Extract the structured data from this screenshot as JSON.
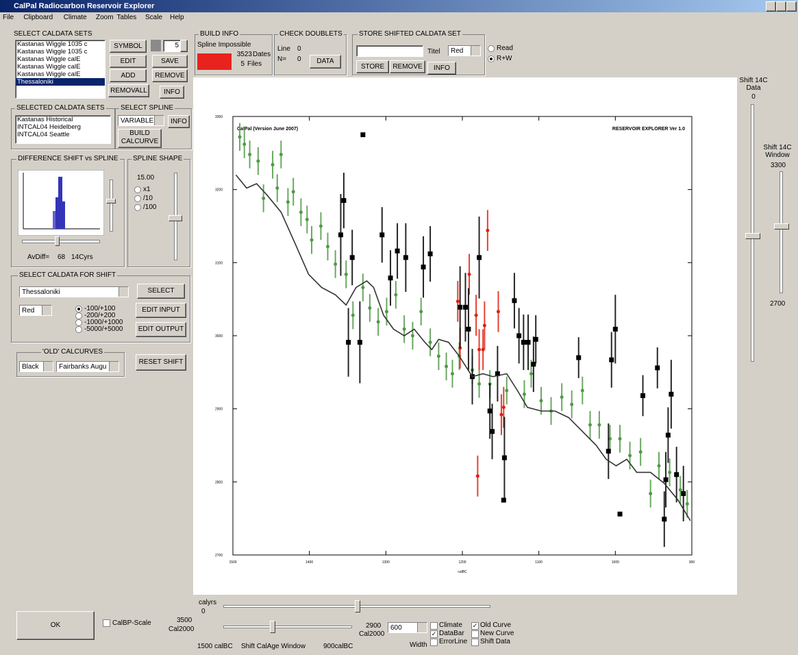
{
  "window": {
    "title": "CalPal Radiocarbon Reservoir Explorer"
  },
  "menu": [
    "File",
    "Clipboard",
    "Climate",
    "Zoom",
    "Tables",
    "Scale",
    "Help"
  ],
  "caldata_sets": {
    "title": "SELECT CALDATA SETS",
    "items": [
      "Kastanas Wiggle 1035 c",
      "Kastanas Wiggle 1035 c",
      "Kastanas Wiggle   calE",
      "Kastanas Wiggle   calE",
      "Kastanas Wiggle   calE",
      "Thessaloniki"
    ],
    "selected": 5,
    "symbol": "SYMBOL",
    "edit": "EDIT",
    "add": "ADD",
    "removall": "REMOVALL",
    "count": 5,
    "save": "SAVE",
    "remove": "REMOVE",
    "info": "INFO"
  },
  "build_info": {
    "title": "BUILD INFO",
    "status": "Spline Impossible",
    "dates": 3523,
    "dates_label": "Dates",
    "files": 5,
    "files_label": "Files"
  },
  "check_doublets": {
    "title": "CHECK DOUBLETS",
    "line_label": "Line",
    "line": 0,
    "n_label": "N=",
    "n": 0,
    "data": "DATA"
  },
  "store": {
    "title": "STORE SHIFTED CALDATA SET",
    "titel": "Titel",
    "color": "Red",
    "modes": [
      "Read",
      "R+W"
    ],
    "mode_selected": 1,
    "store": "STORE",
    "remove": "REMOVE",
    "info": "INFO"
  },
  "selected_sets": {
    "title": "SELECTED CALDATA SETS",
    "items": [
      "Kastanas Historical",
      "INTCAL04 Heidelberg",
      "INTCAL04 Seattle"
    ]
  },
  "select_spline": {
    "title": "SELECT SPLINE",
    "mode": "VARIABLE",
    "info": "INFO",
    "build": "BUILD CALCURVE"
  },
  "difference": {
    "title": "DIFFERENCE SHIFT vs SPLINE",
    "avdiff_label": "AvDiff=",
    "avdiff": 68,
    "unit": "14Cyrs"
  },
  "spline_shape": {
    "title": "SPLINE SHAPE",
    "value": "15.00",
    "options": [
      "x1",
      "/10",
      "/100"
    ],
    "selected": -1
  },
  "shift_select": {
    "title": "SELECT CALDATA FOR SHIFT",
    "set": "Thessaloniki",
    "color": "Red",
    "ranges": [
      "-100/+100",
      "-200/+200",
      "-1000/+1000",
      "-5000/+5000"
    ],
    "selected": 0,
    "select": "SELECT",
    "edit_input": "EDIT INPUT",
    "edit_output": "EDIT OUTPUT"
  },
  "old_calcurves": {
    "title": "'OLD' CALCURVES",
    "color": "Black",
    "curve": "Fairbanks Augu",
    "reset": "RESET SHIFT"
  },
  "right": {
    "data_label": "Shift 14C Data",
    "data_value": 0,
    "window_label": "Shift 14C Window",
    "window_max": 3300,
    "window_min": 2700
  },
  "bottom": {
    "ok": "OK",
    "calbp": "CalBP-Scale",
    "calbp_checked": false,
    "calyrs": "calyrs",
    "calyrs_value": 0,
    "left_value": 3500,
    "left_unit": "Cal2000",
    "right_value": 2900,
    "right_unit": "Cal2000",
    "window_start": "1500 calBC",
    "window_label": "Shift CalAge Window",
    "window_end": "900calBC",
    "width": 600,
    "width_label": "Width",
    "checks": [
      {
        "label": "Climate",
        "checked": false
      },
      {
        "label": "DataBar",
        "checked": true
      },
      {
        "label": "ErrorLine",
        "checked": false
      },
      {
        "label": "Old Curve",
        "checked": true
      },
      {
        "label": "New Curve",
        "checked": false
      },
      {
        "label": "Shift Data",
        "checked": false
      }
    ]
  },
  "chart_data": {
    "type": "scatter",
    "annotations": [
      "CalPal (Version June 2007)",
      "RESERVOIR EXPLORER Ver 1.0"
    ],
    "xlabel": "calBC",
    "xlim": [
      1500,
      900
    ],
    "ylim": [
      2700,
      3300
    ],
    "xticks": [
      1500,
      1400,
      1300,
      1200,
      1100,
      1000,
      900
    ],
    "yticks": [
      2700,
      2800,
      2900,
      3000,
      3100,
      3200,
      3300
    ],
    "series": [
      {
        "type": "scatter",
        "marker": "dot",
        "color": "#4f9a45",
        "x": [
          1491,
          1485,
          1478,
          1467,
          1460,
          1448,
          1442,
          1437,
          1428,
          1421,
          1411,
          1403,
          1397,
          1385,
          1376,
          1366,
          1352,
          1343,
          1330,
          1321,
          1310,
          1299,
          1287,
          1276,
          1265,
          1254,
          1242,
          1231,
          1221,
          1213,
          1204,
          1187,
          1178,
          1164,
          1142,
          1119,
          1110,
          1097,
          1084,
          1070,
          1057,
          1043,
          1033,
          1021,
          1007,
          994,
          981,
          967,
          954,
          943,
          929,
          915,
          906
        ],
        "values": [
          3272,
          3262,
          3248,
          3239,
          3188,
          3234,
          3202,
          3248,
          3183,
          3197,
          3169,
          3159,
          3131,
          3150,
          3122,
          3098,
          3084,
          3028,
          3066,
          3038,
          3019,
          3033,
          3056,
          3009,
          3000,
          3033,
          2991,
          2972,
          2958,
          2948,
          2972,
          2953,
          2934,
          2934,
          2925,
          2920,
          2948,
          2911,
          2897,
          2916,
          2906,
          2925,
          2878,
          2878,
          2859,
          2859,
          2836,
          2841,
          2784,
          2822,
          2813,
          2789,
          2770
        ],
        "errors": [
          19,
          19,
          19,
          19,
          19,
          19,
          19,
          19,
          19,
          19,
          19,
          19,
          19,
          19,
          19,
          19,
          19,
          19,
          19,
          19,
          19,
          19,
          19,
          19,
          19,
          19,
          19,
          19,
          19,
          19,
          19,
          19,
          19,
          19,
          19,
          19,
          19,
          19,
          19,
          19,
          19,
          19,
          19,
          19,
          19,
          19,
          19,
          19,
          19,
          19,
          19,
          19,
          19
        ]
      },
      {
        "type": "scatter",
        "marker": "dot",
        "color": "#e02010",
        "x": [
          1206,
          1203,
          1178,
          1173,
          1171,
          1167,
          1191,
          1182,
          1153,
          1149,
          1146,
          1180
        ],
        "values": [
          3047,
          2983,
          2981,
          2981,
          3014,
          3144,
          3084,
          3028,
          3033,
          2892,
          2902,
          2808
        ],
        "errors": [
          28,
          28,
          28,
          28,
          33,
          28,
          28,
          28,
          28,
          28,
          28,
          28
        ]
      },
      {
        "type": "scatter",
        "marker": "square",
        "color": "#000000",
        "x": [
          1330,
          1355,
          1359,
          1344,
          1349,
          1334,
          1305,
          1294,
          1285,
          1274,
          1251,
          1242,
          1203,
          1196,
          1192,
          1187,
          1178,
          1164,
          1161,
          1154,
          1145,
          1146,
          1132,
          1126,
          1120,
          1114,
          1107,
          1104,
          1048,
          1005,
          1000,
          994,
          1009,
          964,
          945,
          931,
          927,
          934,
          936,
          920,
          911
        ],
        "values": [
          3275,
          3185,
          3138,
          3107,
          2991,
          2991,
          3138,
          3079,
          3116,
          3107,
          3094,
          3112,
          3039,
          3039,
          3009,
          2944,
          3107,
          2897,
          2869,
          2948,
          2833,
          2775,
          3048,
          3000,
          2991,
          2991,
          2961,
          2995,
          2970,
          2967,
          3009,
          2756,
          2842,
          2918,
          2956,
          2864,
          2920,
          2803,
          2749,
          2810,
          2784
        ],
        "errors": [
          0,
          38,
          56,
          38,
          47,
          56,
          38,
          38,
          38,
          47,
          42,
          38,
          56,
          47,
          56,
          38,
          56,
          38,
          38,
          38,
          56,
          0,
          38,
          38,
          38,
          38,
          38,
          33,
          28,
          38,
          47,
          0,
          38,
          28,
          28,
          38,
          47,
          38,
          38,
          38,
          38
        ]
      },
      {
        "type": "line",
        "color": "#333333",
        "x": [
          1496,
          1482,
          1469,
          1455,
          1437,
          1419,
          1401,
          1384,
          1366,
          1352,
          1339,
          1325,
          1316,
          1303,
          1290,
          1276,
          1263,
          1249,
          1240,
          1231,
          1218,
          1204,
          1187,
          1173,
          1160,
          1142,
          1128,
          1115,
          1097,
          1079,
          1061,
          1043,
          1025,
          1012,
          999,
          985,
          972,
          954,
          936,
          918,
          902
        ],
        "values": [
          3220,
          3202,
          3208,
          3192,
          3169,
          3127,
          3084,
          3066,
          3056,
          3042,
          3066,
          3075,
          3066,
          3028,
          3009,
          3000,
          3009,
          2991,
          2981,
          2995,
          2991,
          2972,
          2944,
          2948,
          2944,
          2948,
          2925,
          2902,
          2897,
          2897,
          2888,
          2869,
          2850,
          2831,
          2822,
          2831,
          2813,
          2813,
          2798,
          2775,
          2747
        ]
      }
    ]
  }
}
